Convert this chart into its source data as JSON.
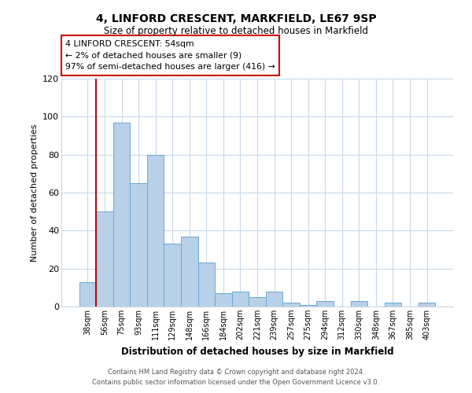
{
  "title": "4, LINFORD CRESCENT, MARKFIELD, LE67 9SP",
  "subtitle": "Size of property relative to detached houses in Markfield",
  "xlabel": "Distribution of detached houses by size in Markfield",
  "ylabel": "Number of detached properties",
  "bar_labels": [
    "38sqm",
    "56sqm",
    "75sqm",
    "93sqm",
    "111sqm",
    "129sqm",
    "148sqm",
    "166sqm",
    "184sqm",
    "202sqm",
    "221sqm",
    "239sqm",
    "257sqm",
    "275sqm",
    "294sqm",
    "312sqm",
    "330sqm",
    "348sqm",
    "367sqm",
    "385sqm",
    "403sqm"
  ],
  "bar_values": [
    13,
    50,
    97,
    65,
    80,
    33,
    37,
    23,
    7,
    8,
    5,
    8,
    2,
    1,
    3,
    0,
    3,
    0,
    2,
    0,
    2
  ],
  "bar_color": "#b8d0e8",
  "bar_edge_color": "#6aaad4",
  "ylim": [
    0,
    120
  ],
  "yticks": [
    0,
    20,
    40,
    60,
    80,
    100,
    120
  ],
  "annotation_line1": "4 LINFORD CRESCENT: 54sqm",
  "annotation_line2": "← 2% of detached houses are smaller (9)",
  "annotation_line3": "97% of semi-detached houses are larger (416) →",
  "footer_line1": "Contains HM Land Registry data © Crown copyright and database right 2024.",
  "footer_line2": "Contains public sector information licensed under the Open Government Licence v3.0.",
  "background_color": "#ffffff",
  "grid_color": "#c8d8ea",
  "red_line_color": "#cc0000"
}
